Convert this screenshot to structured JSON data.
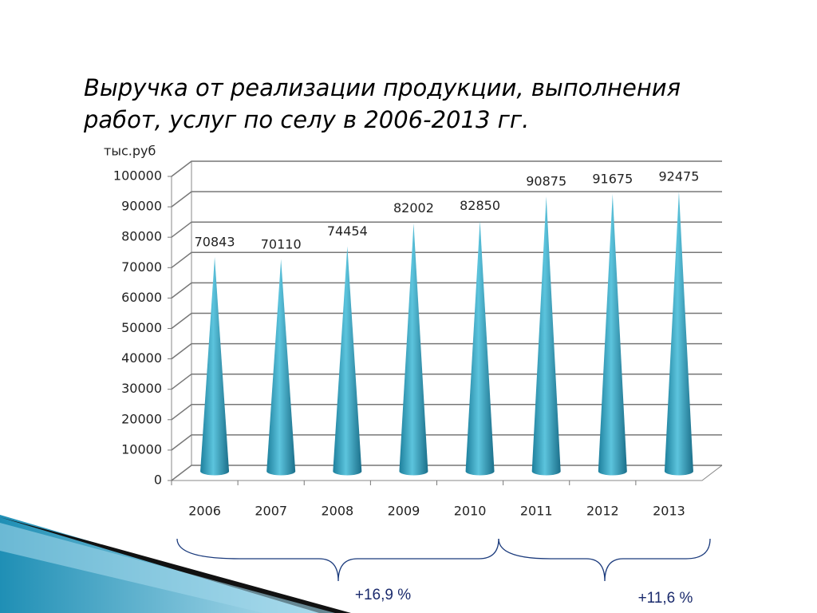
{
  "chart_data": {
    "type": "cone",
    "title": "Выручка от реализации продукции, выполнения работ, услуг  по селу в 2006-2013 гг.",
    "y_label": "тыс.руб",
    "categories": [
      "2006",
      "2007",
      "2008",
      "2009",
      "2010",
      "2011",
      "2012",
      "2013"
    ],
    "values": [
      70843,
      70110,
      74454,
      82002,
      82850,
      90875,
      91675,
      92475
    ],
    "color": "#2e9fbd",
    "ylim": [
      0,
      100000
    ],
    "yticks": [
      0,
      10000,
      20000,
      30000,
      40000,
      50000,
      60000,
      70000,
      80000,
      90000,
      100000
    ],
    "grid": true,
    "annotations": [
      "+16,9 %",
      "+11,6 %"
    ]
  }
}
